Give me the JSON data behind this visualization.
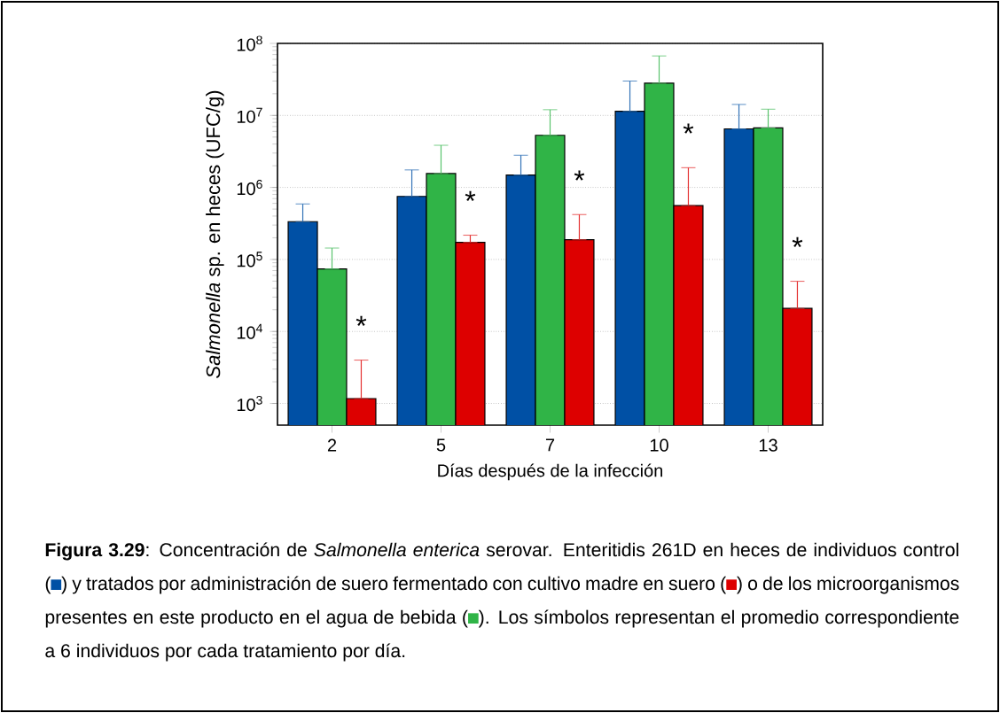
{
  "chart_data": {
    "type": "bar",
    "xlabel": "Días después de la infección",
    "ylabel": "*Salmonella* sp. en heces (UFC/g)",
    "categories": [
      "2",
      "5",
      "7",
      "10",
      "13"
    ],
    "series": [
      {
        "color": "#0050a5",
        "values": [
          335000,
          750000,
          1490000,
          11400000,
          6500000
        ],
        "errors": [
          [
            335000,
            590000
          ],
          [
            750000,
            1750000
          ],
          [
            1490000,
            2800000
          ],
          [
            11400000,
            30000000
          ],
          [
            6500000,
            14200000
          ]
        ]
      },
      {
        "color": "#30b447",
        "values": [
          74000,
          1560000,
          5300000,
          28000000,
          6700000
        ],
        "errors": [
          [
            74000,
            144000
          ],
          [
            1560000,
            3850000
          ],
          [
            5300000,
            12000000
          ],
          [
            28000000,
            67000000
          ],
          [
            6700000,
            12200000
          ]
        ]
      },
      {
        "color": "#dd0000",
        "values": [
          1170,
          173000,
          188000,
          560000,
          20900
        ],
        "errors": [
          [
            1170,
            4000
          ],
          [
            173000,
            217000
          ],
          [
            188000,
            420000
          ],
          [
            560000,
            1880000
          ],
          [
            20900,
            49700
          ]
        ]
      }
    ],
    "log": true,
    "grid": "y",
    "ylim": [
      500,
      100000000
    ],
    "yticks": [
      {
        "value": 1000,
        "label": "10$^{3}$"
      },
      {
        "value": 10000,
        "label": "10$^{4}$"
      },
      {
        "value": 100000,
        "label": "10$^{5}$"
      },
      {
        "value": 1000000,
        "label": "10$^{6}$"
      },
      {
        "value": 10000000,
        "label": "10$^{7}$"
      },
      {
        "value": 100000000,
        "label": "10$^{8}$"
      }
    ],
    "annotations": [
      "**Figura 3.29**: Concentración de *Salmonella enterica* serovar. Enteritidis 261D en heces de individuos control (",
      ") y tratados por administración de suero fermentado con cultivo madre en suero (",
      ") o de los microorganismos presentes en este producto en el agua de bebida (",
      "). Los símbolos representan el promedio correspondiente a 6 individuos por cada tratamiento por día.",
      "*",
      "*",
      "*",
      "*",
      "*"
    ]
  }
}
